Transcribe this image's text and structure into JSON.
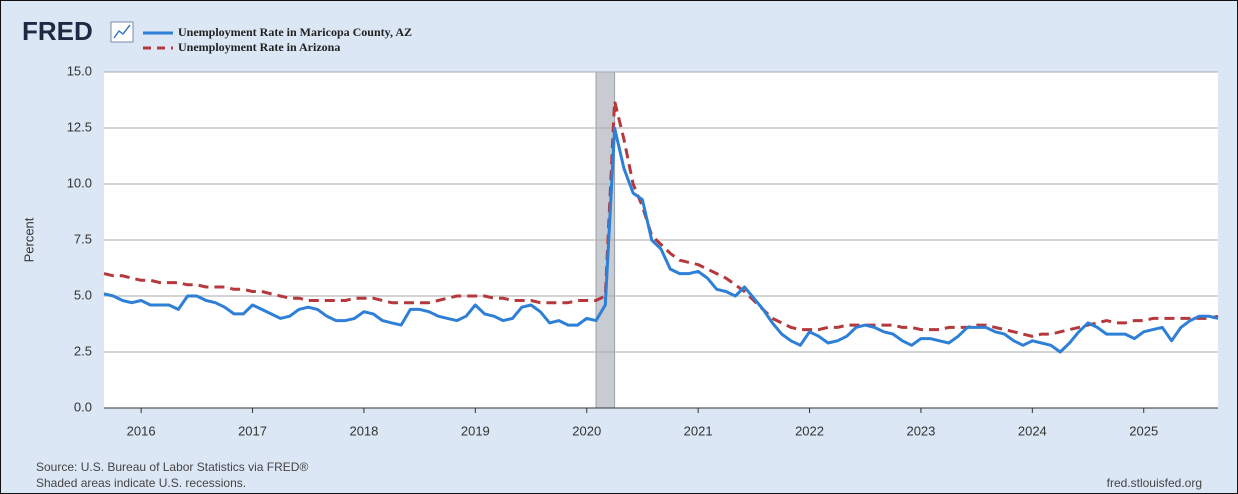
{
  "chart_data": {
    "type": "line",
    "logo": "FRED",
    "ylabel": "Percent",
    "source": "Source: U.S. Bureau of Labor Statistics via FRED®",
    "note": "Shaded areas indicate U.S. recessions.",
    "site": "fred.stlouisfed.org",
    "x": [
      "2015-09",
      "2015-10",
      "2015-11",
      "2015-12",
      "2016-01",
      "2016-02",
      "2016-03",
      "2016-04",
      "2016-05",
      "2016-06",
      "2016-07",
      "2016-08",
      "2016-09",
      "2016-10",
      "2016-11",
      "2016-12",
      "2017-01",
      "2017-02",
      "2017-03",
      "2017-04",
      "2017-05",
      "2017-06",
      "2017-07",
      "2017-08",
      "2017-09",
      "2017-10",
      "2017-11",
      "2017-12",
      "2018-01",
      "2018-02",
      "2018-03",
      "2018-04",
      "2018-05",
      "2018-06",
      "2018-07",
      "2018-08",
      "2018-09",
      "2018-10",
      "2018-11",
      "2018-12",
      "2019-01",
      "2019-02",
      "2019-03",
      "2019-04",
      "2019-05",
      "2019-06",
      "2019-07",
      "2019-08",
      "2019-09",
      "2019-10",
      "2019-11",
      "2019-12",
      "2020-01",
      "2020-02",
      "2020-03",
      "2020-04",
      "2020-05",
      "2020-06",
      "2020-07",
      "2020-08",
      "2020-09",
      "2020-10",
      "2020-11",
      "2020-12",
      "2021-01",
      "2021-02",
      "2021-03",
      "2021-04",
      "2021-05",
      "2021-06",
      "2021-07",
      "2021-08",
      "2021-09",
      "2021-10",
      "2021-11",
      "2021-12",
      "2022-01",
      "2022-02",
      "2022-03",
      "2022-04",
      "2022-05",
      "2022-06",
      "2022-07",
      "2022-08",
      "2022-09",
      "2022-10",
      "2022-11",
      "2022-12",
      "2023-01",
      "2023-02",
      "2023-03",
      "2023-04",
      "2023-05",
      "2023-06",
      "2023-07",
      "2023-08",
      "2023-09",
      "2023-10",
      "2023-11",
      "2023-12",
      "2024-01",
      "2024-02",
      "2024-03",
      "2024-04",
      "2024-05",
      "2024-06",
      "2024-07",
      "2024-08",
      "2024-09",
      "2024-10",
      "2024-11",
      "2024-12",
      "2025-01",
      "2025-02",
      "2025-03",
      "2025-04",
      "2025-05",
      "2025-06",
      "2025-07",
      "2025-08",
      "2025-09"
    ],
    "series": [
      {
        "name": "Unemployment Rate in Maricopa County, AZ",
        "color": "#2e7fd6",
        "dash": false,
        "values": [
          5.1,
          5.0,
          4.8,
          4.7,
          4.8,
          4.6,
          4.6,
          4.6,
          4.4,
          5.0,
          5.0,
          4.8,
          4.7,
          4.5,
          4.2,
          4.2,
          4.6,
          4.4,
          4.2,
          4.0,
          4.1,
          4.4,
          4.5,
          4.4,
          4.1,
          3.9,
          3.9,
          4.0,
          4.3,
          4.2,
          3.9,
          3.8,
          3.7,
          4.4,
          4.4,
          4.3,
          4.1,
          4.0,
          3.9,
          4.1,
          4.6,
          4.2,
          4.1,
          3.9,
          4.0,
          4.5,
          4.6,
          4.3,
          3.8,
          3.9,
          3.7,
          3.7,
          4.0,
          3.9,
          4.6,
          12.5,
          10.7,
          9.6,
          9.3,
          7.5,
          7.1,
          6.2,
          6.0,
          6.0,
          6.1,
          5.8,
          5.3,
          5.2,
          5.0,
          5.4,
          4.9,
          4.4,
          3.8,
          3.3,
          3.0,
          2.8,
          3.4,
          3.2,
          2.9,
          3.0,
          3.2,
          3.6,
          3.7,
          3.6,
          3.4,
          3.3,
          3.0,
          2.8,
          3.1,
          3.1,
          3.0,
          2.9,
          3.2,
          3.6,
          3.6,
          3.6,
          3.4,
          3.3,
          3.0,
          2.8,
          3.0,
          2.9,
          2.8,
          2.5,
          2.9,
          3.4,
          3.8,
          3.6,
          3.3,
          3.3,
          3.3,
          3.1,
          3.4,
          3.5,
          3.6,
          3.0,
          3.6,
          3.9,
          4.1,
          4.1,
          4.0
        ]
      },
      {
        "name": "Unemployment Rate in Arizona",
        "color": "#b5383c",
        "dash": true,
        "values": [
          6.0,
          5.9,
          5.9,
          5.8,
          5.7,
          5.7,
          5.6,
          5.6,
          5.6,
          5.5,
          5.5,
          5.4,
          5.4,
          5.4,
          5.3,
          5.3,
          5.2,
          5.2,
          5.1,
          5.0,
          4.9,
          4.9,
          4.8,
          4.8,
          4.8,
          4.8,
          4.8,
          4.9,
          4.9,
          4.9,
          4.8,
          4.7,
          4.7,
          4.7,
          4.7,
          4.7,
          4.8,
          4.9,
          5.0,
          5.0,
          5.0,
          5.0,
          4.9,
          4.9,
          4.8,
          4.8,
          4.8,
          4.7,
          4.7,
          4.7,
          4.7,
          4.8,
          4.8,
          4.8,
          5.0,
          13.7,
          12.0,
          10.0,
          9.0,
          7.7,
          7.3,
          6.9,
          6.6,
          6.5,
          6.4,
          6.2,
          6.0,
          5.8,
          5.5,
          5.2,
          4.8,
          4.4,
          4.0,
          3.8,
          3.6,
          3.5,
          3.5,
          3.5,
          3.6,
          3.6,
          3.7,
          3.7,
          3.7,
          3.7,
          3.7,
          3.7,
          3.6,
          3.6,
          3.5,
          3.5,
          3.5,
          3.6,
          3.6,
          3.6,
          3.7,
          3.7,
          3.6,
          3.5,
          3.4,
          3.3,
          3.2,
          3.3,
          3.3,
          3.4,
          3.5,
          3.6,
          3.7,
          3.8,
          3.9,
          3.8,
          3.8,
          3.9,
          3.9,
          4.0,
          4.0,
          4.0,
          4.0,
          4.0,
          4.0,
          4.0,
          4.1
        ]
      }
    ],
    "recessions": [
      [
        "2020-02",
        "2020-04"
      ]
    ],
    "xlim": [
      "2015-09",
      "2025-09"
    ],
    "xticks": [
      2016,
      2017,
      2018,
      2019,
      2020,
      2021,
      2022,
      2023,
      2024,
      2025
    ],
    "ylim": [
      0,
      15
    ],
    "yticks": [
      {
        "value": 0,
        "label": "0.0"
      },
      2.5,
      {
        "value": 5,
        "label": "5.0"
      },
      7.5,
      {
        "value": 10,
        "label": "10.0"
      },
      12.5,
      {
        "value": 15,
        "label": "15.0"
      }
    ],
    "grid": true
  }
}
